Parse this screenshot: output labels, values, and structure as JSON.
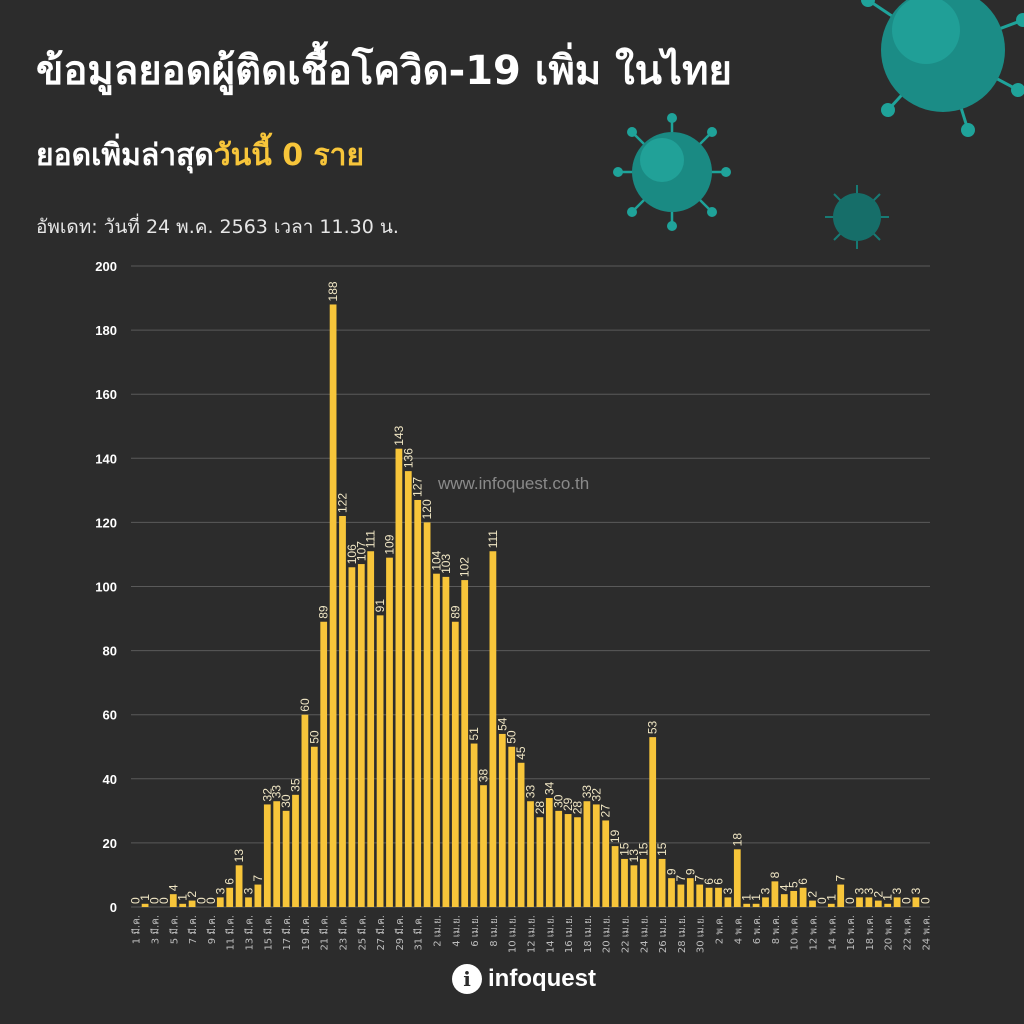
{
  "header": {
    "title": "ข้อมูลยอดผู้ติดเชื้อโควิด-19 เพิ่ม ในไทย",
    "subtitle_prefix": "ยอดเพิ่มล่าสุด",
    "subtitle_highlight": "วันนี้  0 ราย",
    "update": "อัพเดท: วันที่ 24 พ.ค. 2563 เวลา 11.30 น."
  },
  "watermark": "www.infoquest.co.th",
  "logo": {
    "mark": "i",
    "text": "infoquest"
  },
  "colors": {
    "background": "#2c2c2c",
    "bar": "#f7c53a",
    "accent": "#f7c53a",
    "grid": "#5a5a5a",
    "virus": "#1fa39a"
  },
  "chart_data": {
    "type": "bar",
    "title": "",
    "xlabel": "",
    "ylabel": "",
    "ylim": [
      0,
      200
    ],
    "yticks": [
      0,
      20,
      40,
      60,
      80,
      100,
      120,
      140,
      160,
      180,
      200
    ],
    "grid": true,
    "values": [
      0,
      1,
      0,
      0,
      4,
      1,
      2,
      0,
      0,
      3,
      6,
      13,
      3,
      7,
      32,
      33,
      30,
      35,
      60,
      50,
      89,
      188,
      122,
      106,
      107,
      111,
      91,
      109,
      143,
      136,
      127,
      120,
      104,
      103,
      89,
      102,
      51,
      38,
      111,
      54,
      50,
      45,
      33,
      28,
      34,
      30,
      29,
      28,
      33,
      32,
      27,
      19,
      15,
      13,
      15,
      53,
      15,
      9,
      7,
      9,
      7,
      6,
      6,
      3,
      18,
      1,
      1,
      3,
      8,
      4,
      5,
      6,
      2,
      0,
      1,
      7,
      0,
      3,
      3,
      2,
      1,
      3,
      0,
      3,
      0
    ],
    "xtick_labels": [
      "1 มี.ค.",
      "3 มี.ค.",
      "5 มี.ค.",
      "7 มี.ค.",
      "9 มี.ค.",
      "11 มี.ค.",
      "13 มี.ค.",
      "15 มี.ค.",
      "17 มี.ค.",
      "19 มี.ค.",
      "21 มี.ค.",
      "23 มี.ค.",
      "25 มี.ค.",
      "27 มี.ค.",
      "29 มี.ค.",
      "31 มี.ค.",
      "2 เม.ย.",
      "4 เม.ย.",
      "6 เม.ย.",
      "8 เม.ย.",
      "10 เม.ย.",
      "12 เม.ย.",
      "14 เม.ย.",
      "16 เม.ย.",
      "18 เม.ย.",
      "20 เม.ย.",
      "22 เม.ย.",
      "24 เม.ย.",
      "26 เม.ย.",
      "28 เม.ย.",
      "30 เม.ย.",
      "2 พ.ค.",
      "4 พ.ค.",
      "6 พ.ค.",
      "8 พ.ค.",
      "10 พ.ค.",
      "12 พ.ค.",
      "14 พ.ค.",
      "16 พ.ค.",
      "18 พ.ค.",
      "20 พ.ค.",
      "22 พ.ค.",
      "24 พ.ค."
    ]
  }
}
